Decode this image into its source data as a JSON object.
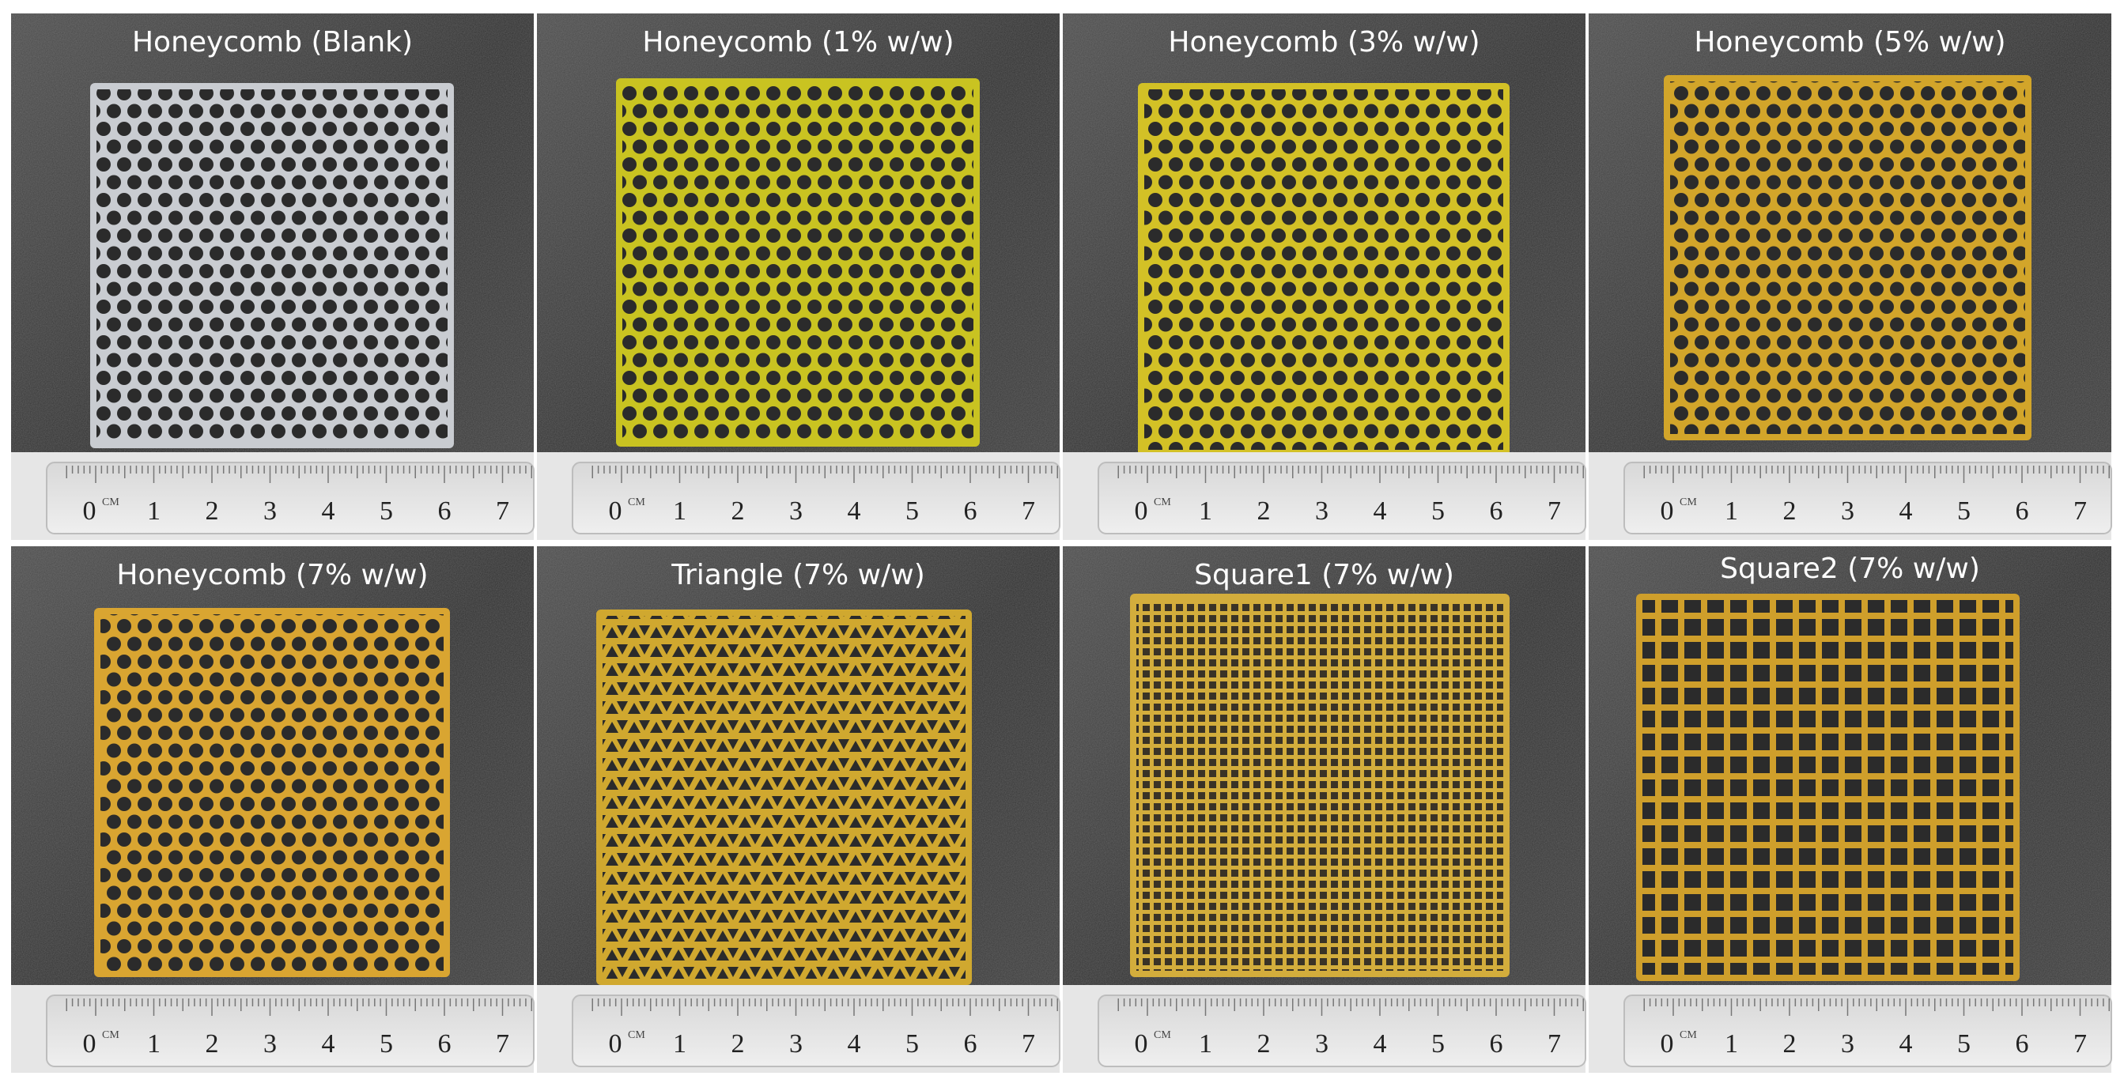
{
  "panels": [
    {
      "title": "Honeycomb (Blank)"
    },
    {
      "title": "Honeycomb (1% w/w)"
    },
    {
      "title": "Honeycomb (3% w/w)"
    },
    {
      "title": "Honeycomb (5% w/w)"
    },
    {
      "title": "Honeycomb (7% w/w)"
    },
    {
      "title": "Triangle (7% w/w)"
    },
    {
      "title": "Square1 (7% w/w)"
    },
    {
      "title": "Square2 (7% w/w)"
    }
  ],
  "ruler": {
    "unit": "CM",
    "numbers": [
      0,
      1,
      2,
      3,
      4,
      5,
      6,
      7
    ]
  }
}
